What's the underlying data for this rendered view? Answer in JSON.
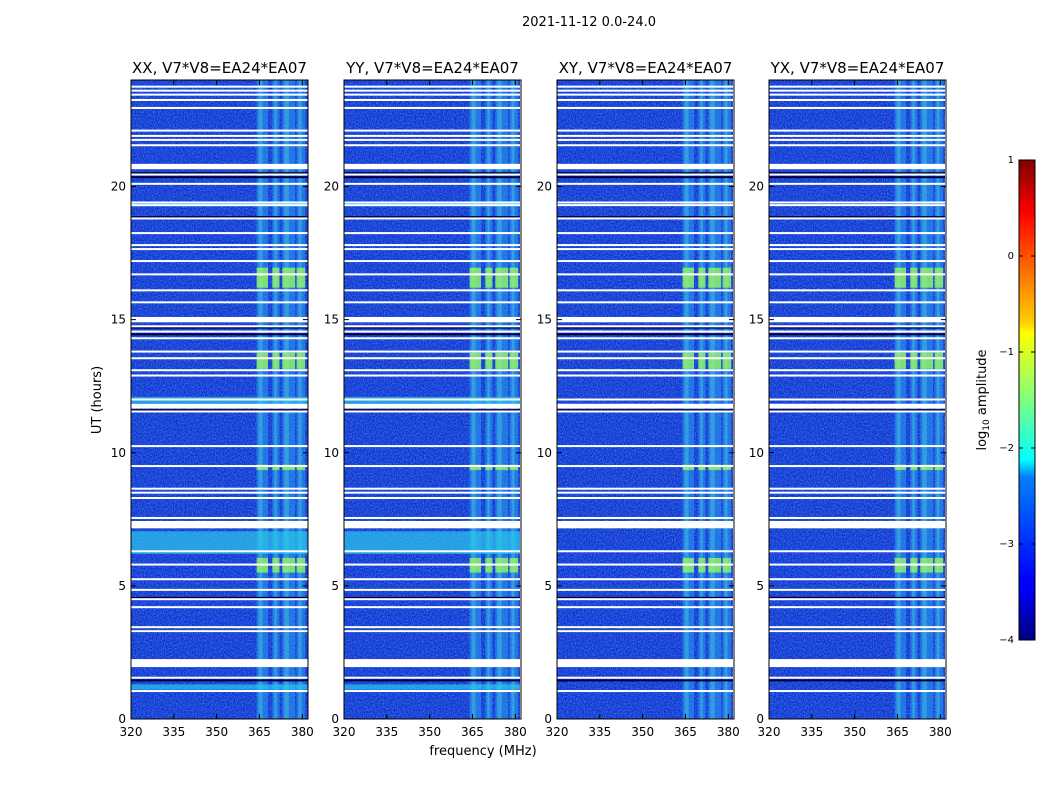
{
  "figure_title": "2021-11-12 0.0-24.0",
  "chart_data": {
    "type": "heatmap",
    "suptitle": "2021-11-12 0.0-24.0",
    "ylabel": "UT (hours)",
    "xlabel": "frequency (MHz)",
    "xlim": [
      320,
      382
    ],
    "ylim": [
      0,
      24
    ],
    "xticks": [
      320,
      335,
      350,
      365,
      380
    ],
    "yticks": [
      0,
      5,
      10,
      15,
      20
    ],
    "panels": [
      {
        "title": "XX, V7*V8=EA24*EA07",
        "polarization": "XX"
      },
      {
        "title": "YY, V7*V8=EA24*EA07",
        "polarization": "YY"
      },
      {
        "title": "XY, V7*V8=EA24*EA07",
        "polarization": "XY"
      },
      {
        "title": "YX, V7*V8=EA24*EA07",
        "polarization": "YX"
      }
    ],
    "rfi_channels_mhz": [
      [
        364,
        368
      ],
      [
        369.5,
        372
      ],
      [
        373,
        377.5
      ],
      [
        378,
        381
      ]
    ],
    "flagged_gaps_hours": [
      1.05,
      1.55,
      2.0,
      2.15,
      3.3,
      3.45,
      4.2,
      4.5,
      4.85,
      5.25,
      5.8,
      6.3,
      7.2,
      7.4,
      7.55,
      8.3,
      8.5,
      8.65,
      9.5,
      10.25,
      11.55,
      11.75,
      12.0,
      12.9,
      13.1,
      13.55,
      13.8,
      14.3,
      14.55,
      14.75,
      14.95,
      15.65,
      16.1,
      16.7,
      17.2,
      17.65,
      17.8,
      18.25,
      18.8,
      19.3,
      19.4,
      20.1,
      20.45,
      20.8,
      21.55,
      21.75,
      21.9,
      22.1,
      22.95,
      23.25,
      23.45,
      23.6,
      23.75
    ],
    "colorbar": {
      "label": "log10 amplitude",
      "label_main": "log",
      "label_sub": "10",
      "label_rest": " amplitude",
      "min": -4,
      "max": 1,
      "ticks": [
        1,
        0,
        -1,
        -2,
        -3,
        -4
      ],
      "tick_labels": [
        "1",
        "0",
        "−1",
        "−2",
        "−3",
        "−4"
      ],
      "colormap": "jet"
    }
  }
}
